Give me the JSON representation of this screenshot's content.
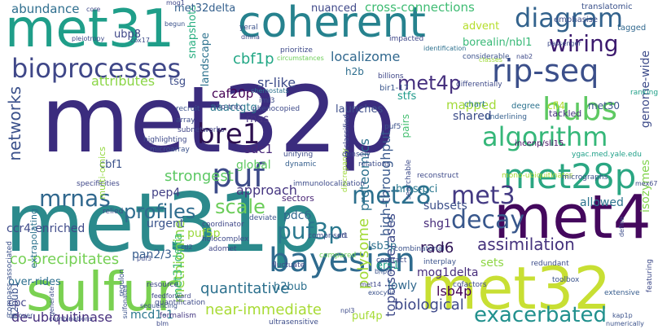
{
  "words": [
    {
      "text": "met32p",
      "color": "#3b2c7e"
    },
    {
      "text": "met31p",
      "color": "#2b8a8c"
    },
    {
      "text": "met32",
      "color": "#c8df33"
    },
    {
      "text": "met4",
      "color": "#44085d"
    },
    {
      "text": "sulfur",
      "color": "#7ad151"
    },
    {
      "text": "met31",
      "color": "#1f9e89"
    },
    {
      "text": "coherent",
      "color": "#26828e"
    },
    {
      "text": "met28p",
      "color": "#2aa682"
    },
    {
      "text": "rip-seq",
      "color": "#3b4f8a"
    },
    {
      "text": "bayesian",
      "color": "#2f6b8e"
    },
    {
      "text": "puf",
      "color": "#3d4b89"
    },
    {
      "text": "hubs",
      "color": "#5ec962"
    },
    {
      "text": "algorithm",
      "color": "#35b779"
    },
    {
      "text": "diagram",
      "color": "#33638d"
    },
    {
      "text": "bioprocesses",
      "color": "#3f4788"
    },
    {
      "text": "bre1",
      "color": "#2c0f4f"
    },
    {
      "text": "decay",
      "color": "#38578c"
    },
    {
      "text": "met28",
      "color": "#2d708e"
    },
    {
      "text": "met3",
      "color": "#443a83"
    },
    {
      "text": "wiring",
      "color": "#3c1a6e"
    },
    {
      "text": "mrnas",
      "color": "#31688e"
    },
    {
      "text": "exacerbated",
      "color": "#21908d"
    },
    {
      "text": "puf3p",
      "color": "#2a788e"
    },
    {
      "text": "met4p",
      "color": "#46307e"
    },
    {
      "text": "scale",
      "color": "#6ccd5a"
    },
    {
      "text": "profiles",
      "color": "#2f6c8e"
    },
    {
      "text": "assimilation",
      "color": "#45337d"
    },
    {
      "text": "networks",
      "color": "#3b518b"
    },
    {
      "text": "cbf1p",
      "color": "#22a785"
    },
    {
      "text": "methionine",
      "color": "#8ed645"
    },
    {
      "text": "polysome",
      "color": "#a2da37"
    },
    {
      "text": "topoisomerases",
      "color": "#3e4a89"
    },
    {
      "text": "quantitative",
      "color": "#2d718e"
    },
    {
      "text": "co-precipitates",
      "color": "#75d054"
    },
    {
      "text": "biological",
      "color": "#3e4989"
    },
    {
      "text": "high-throughput",
      "color": "#38588c"
    },
    {
      "text": "proteomics",
      "color": "#2c728e"
    },
    {
      "text": "rad6",
      "color": "#2b0f53"
    },
    {
      "text": "lsb4p",
      "color": "#440154"
    },
    {
      "text": "near-immediate",
      "color": "#a8db34"
    },
    {
      "text": "de-ubiquitinase",
      "color": "#472f7d"
    },
    {
      "text": "strongest",
      "color": "#5cc863"
    },
    {
      "text": "attributes",
      "color": "#8bd646"
    },
    {
      "text": "approach",
      "color": "#453581"
    },
    {
      "text": "abundance",
      "color": "#2e6e8e"
    },
    {
      "text": "cross-connections",
      "color": "#3fbc73"
    },
    {
      "text": "localizome",
      "color": "#31688e"
    },
    {
      "text": "sr-like",
      "color": "#3e4c8a"
    },
    {
      "text": "mapped",
      "color": "#a2da37"
    },
    {
      "text": "shared",
      "color": "#3d4d8a"
    },
    {
      "text": "subsets",
      "color": "#3c4f8a"
    },
    {
      "text": "shg1",
      "color": "#472c7a"
    },
    {
      "text": "allowed",
      "color": "#2c738e"
    },
    {
      "text": "genome-wide",
      "color": "#3e4c8a"
    },
    {
      "text": "isozymes",
      "color": "#81d34d"
    },
    {
      "text": "caf20p",
      "color": "#440154"
    },
    {
      "text": "sdc1",
      "color": "#482878"
    },
    {
      "text": "global",
      "color": "#5ec962"
    },
    {
      "text": "pep4",
      "color": "#424086"
    },
    {
      "text": "urgent",
      "color": "#3a548c"
    },
    {
      "text": "puf5p",
      "color": "#9bd93c"
    },
    {
      "text": "pdc6",
      "color": "#31678e"
    },
    {
      "text": "ccr4-enriched",
      "color": "#3e4a89"
    },
    {
      "text": "pan2/3",
      "color": "#365c8d"
    },
    {
      "text": "met31delta",
      "color": "#3fbc73"
    },
    {
      "text": "mcd1-1",
      "color": "#2a778e"
    },
    {
      "text": "mog1delta",
      "color": "#472d7b"
    },
    {
      "text": "sets",
      "color": "#8ed645"
    },
    {
      "text": "lowly",
      "color": "#31688e"
    },
    {
      "text": "puf4p",
      "color": "#a5db36"
    },
    {
      "text": "h2bub",
      "color": "#2d708e"
    },
    {
      "text": "ers1",
      "color": "#1fa088"
    },
    {
      "text": "lsb3p",
      "color": "#2d708e"
    },
    {
      "text": "hms-pci",
      "color": "#2a788e"
    },
    {
      "text": "h2bub1",
      "color": "#3b528b"
    },
    {
      "text": "cbf1",
      "color": "#3b528b"
    },
    {
      "text": "tsg",
      "color": "#3d4d8a"
    },
    {
      "text": "cpc",
      "color": "#414487"
    },
    {
      "text": "over-rides",
      "color": "#2e6f8e"
    },
    {
      "text": "snapshots",
      "color": "#28ae80"
    },
    {
      "text": "landscape",
      "color": "#2c728e"
    },
    {
      "text": "multi-omics",
      "color": "#95d840"
    },
    {
      "text": "nuanced",
      "color": "#3f4889"
    },
    {
      "text": "met32delta",
      "color": "#34608d"
    },
    {
      "text": "ubp8",
      "color": "#3f4788"
    },
    {
      "text": "advent",
      "color": "#b5de2b"
    },
    {
      "text": "borealin/nbl1",
      "color": "#38b977"
    },
    {
      "text": "stfs",
      "color": "#1f9a8a"
    },
    {
      "text": "aaactgtg",
      "color": "#2a788e"
    },
    {
      "text": "rnas",
      "color": "#46337f"
    },
    {
      "text": "launches",
      "color": "#3d4e8a"
    },
    {
      "text": "pairs",
      "color": "#44bf70"
    },
    {
      "text": "h2b",
      "color": "#2e6e8e"
    },
    {
      "text": "bir1-17",
      "color": "#39568c"
    },
    {
      "text": "cfl4",
      "color": "#b0dd2f"
    },
    {
      "text": "met30",
      "color": "#3a548c"
    },
    {
      "text": "tackled",
      "color": "#46337f"
    },
    {
      "text": "degree",
      "color": "#2c728e"
    },
    {
      "text": "incenp/sli15",
      "color": "#471063"
    },
    {
      "text": "ygac.med.yale.edu",
      "color": "#1fa088"
    },
    {
      "text": "immunolocalization",
      "color": "#3e4c8a"
    },
    {
      "text": "sectors",
      "color": "#482475"
    },
    {
      "text": "compass-associated",
      "color": "#3b528b"
    },
    {
      "text": "extrapolating",
      "color": "#2c728e"
    },
    {
      "text": "specificities",
      "color": "#3f4788"
    },
    {
      "text": "formalism",
      "color": "#453882"
    },
    {
      "text": "toolbox",
      "color": "#3a538b"
    },
    {
      "text": "extensive",
      "color": "#365c8d"
    },
    {
      "text": "translatomic",
      "color": "#3b528b"
    },
    {
      "text": "emphasise",
      "color": "#3d4e8a"
    },
    {
      "text": "tagged",
      "color": "#31688e"
    },
    {
      "text": "passenger",
      "color": "#3e4a89"
    },
    {
      "text": "impacted",
      "color": "#3f4788"
    },
    {
      "text": "identification",
      "color": "#2d708e"
    },
    {
      "text": "considerable",
      "color": "#3b528b"
    },
    {
      "text": "prioritize",
      "color": "#3e4a89"
    },
    {
      "text": "circumstances",
      "color": "#6ece58"
    },
    {
      "text": "billions",
      "color": "#3f4788"
    },
    {
      "text": "differentially",
      "color": "#3e4a89"
    },
    {
      "text": "chart",
      "color": "#2a788e"
    },
    {
      "text": "underlining",
      "color": "#35608d"
    },
    {
      "text": "ranking",
      "color": "#1fa088"
    },
    {
      "text": "unclassified",
      "color": "#3e4a89"
    },
    {
      "text": "puf5",
      "color": "#3b528b"
    },
    {
      "text": "searchable",
      "color": "#3e4c8a"
    },
    {
      "text": "discrepancy",
      "color": "#9fda3a"
    },
    {
      "text": "chemostats",
      "color": "#2c728e"
    },
    {
      "text": "iml3",
      "color": "#3e4c8a"
    },
    {
      "text": "phenocopied",
      "color": "#3e4a89"
    },
    {
      "text": "tho-trex",
      "color": "#3f4788"
    },
    {
      "text": "recruit",
      "color": "#3b528b"
    },
    {
      "text": "array",
      "color": "#3d4d8a"
    },
    {
      "text": "subnetworks",
      "color": "#404688"
    },
    {
      "text": "highlighting",
      "color": "#3e4a89"
    },
    {
      "text": "microarray",
      "color": "#3b528b"
    },
    {
      "text": "unifying",
      "color": "#3e4c8a"
    },
    {
      "text": "dynamic",
      "color": "#355f8d"
    },
    {
      "text": "densely",
      "color": "#3e4a89"
    },
    {
      "text": "relations",
      "color": "#3d4d8a"
    },
    {
      "text": "reconstruct",
      "color": "#3e4a89"
    },
    {
      "text": "mono-ubiquitinates",
      "color": "#a8db34"
    },
    {
      "text": "micrographs",
      "color": "#3b528b"
    },
    {
      "text": "relied",
      "color": "#3e4a89"
    },
    {
      "text": "coordinator",
      "color": "#3f4788"
    },
    {
      "text": "comprised",
      "color": "#3e4c8a"
    },
    {
      "text": "deviate",
      "color": "#3b528b"
    },
    {
      "text": "holocomplex",
      "color": "#3e4a89"
    },
    {
      "text": "adomet",
      "color": "#404688"
    },
    {
      "text": "combinatorial",
      "color": "#3b528b"
    },
    {
      "text": "contract",
      "color": "#3e4a89"
    },
    {
      "text": "fluctuate",
      "color": "#3f4788"
    },
    {
      "text": "compared",
      "color": "#6ece58"
    },
    {
      "text": "redundant",
      "color": "#3d4d8a"
    },
    {
      "text": "interplay",
      "color": "#3b528b"
    },
    {
      "text": "cofactors",
      "color": "#3e4a89"
    },
    {
      "text": "resource",
      "color": "#3f4788"
    },
    {
      "text": "regulon",
      "color": "#3b528b"
    },
    {
      "text": "quantification",
      "color": "#3e4a89"
    },
    {
      "text": "ultrasensitive",
      "color": "#3d4d8a"
    },
    {
      "text": "featuring",
      "color": "#3e4a89"
    },
    {
      "text": "numerically",
      "color": "#3b528b"
    },
    {
      "text": "core",
      "color": "#3e4a89"
    },
    {
      "text": "yeral",
      "color": "#3b528b"
    },
    {
      "text": "pleiotropy",
      "color": "#3e4c8a"
    },
    {
      "text": "cox17",
      "color": "#3e4a89"
    },
    {
      "text": "mog1",
      "color": "#3f4788"
    },
    {
      "text": "begun",
      "color": "#3b528b"
    },
    {
      "text": "dmna",
      "color": "#3e4a89"
    },
    {
      "text": "sequencing",
      "color": "#3b528b"
    },
    {
      "text": "blm",
      "color": "#3e4a89"
    },
    {
      "text": "generate",
      "color": "#3d4d8a"
    },
    {
      "text": "uncover",
      "color": "#3b528b"
    },
    {
      "text": "combinations",
      "color": "#3e4a89"
    },
    {
      "text": "feedforward",
      "color": "#3f4788"
    },
    {
      "text": "sulfonates",
      "color": "#3b528b"
    },
    {
      "text": "puf3",
      "color": "#3e4a89"
    },
    {
      "text": "npl3",
      "color": "#3e4c8a"
    },
    {
      "text": "exocytic",
      "color": "#3b528b"
    },
    {
      "text": "classes",
      "color": "#9fda3a"
    },
    {
      "text": "nab2",
      "color": "#3e4a89"
    },
    {
      "text": "cd2",
      "color": "#3b528b"
    },
    {
      "text": "rif1",
      "color": "#3e4a89"
    },
    {
      "text": "met14",
      "color": "#3f4788"
    },
    {
      "text": "b/ipl1",
      "color": "#3b528b"
    },
    {
      "text": "mex67",
      "color": "#3e4a89"
    },
    {
      "text": "define",
      "color": "#3d4d8a"
    },
    {
      "text": "kap1p",
      "color": "#3b528b"
    }
  ]
}
